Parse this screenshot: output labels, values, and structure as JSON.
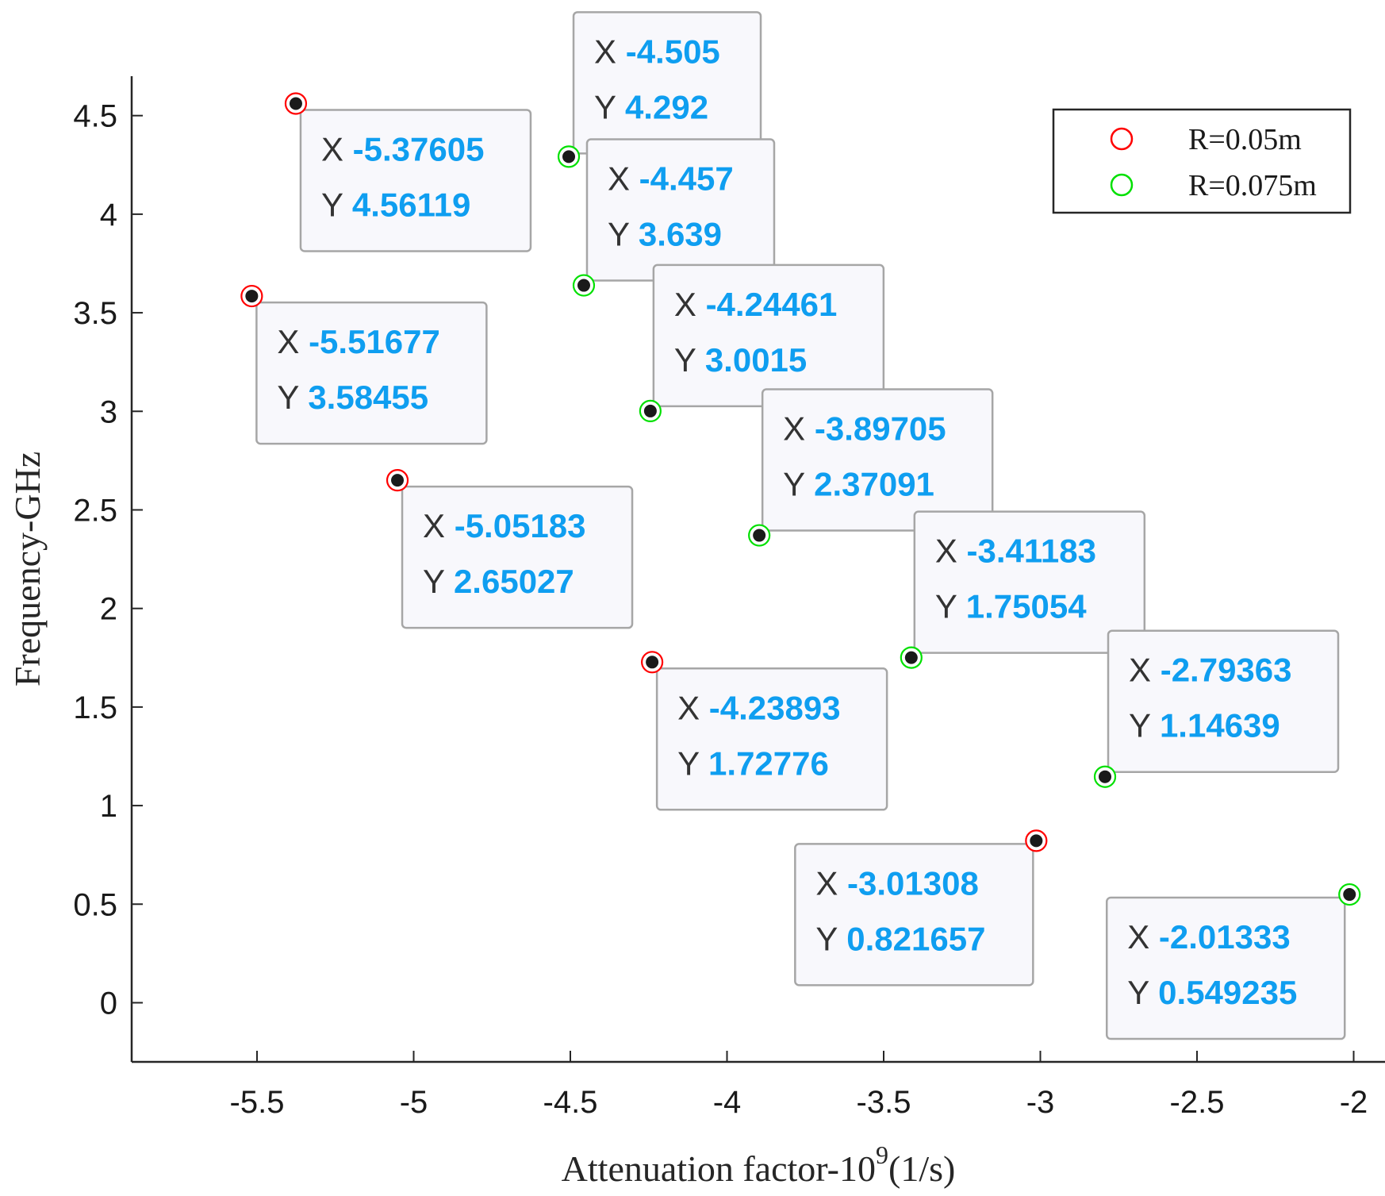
{
  "chart_data": {
    "type": "scatter",
    "title": "",
    "xlabel": "Attenuation factor-10",
    "xlabel_superscript": "9",
    "xlabel_suffix": "(1/s)",
    "ylabel": "Frequency-GHz",
    "xlim": [
      -5.9,
      -1.9
    ],
    "ylim": [
      -0.3,
      4.7
    ],
    "x_ticks": [
      -5.5,
      -5,
      -4.5,
      -4,
      -3.5,
      -3,
      -2.5,
      -2
    ],
    "x_tick_labels": [
      "-5.5",
      "-5",
      "-4.5",
      "-4",
      "-3.5",
      "-3",
      "-2.5",
      "-2"
    ],
    "y_ticks": [
      0,
      0.5,
      1,
      1.5,
      2,
      2.5,
      3,
      3.5,
      4,
      4.5
    ],
    "y_tick_labels": [
      "0",
      "0.5",
      "1",
      "1.5",
      "2",
      "2.5",
      "3",
      "3.5",
      "4",
      "4.5"
    ],
    "grid": false,
    "legend_position": "top-right",
    "series": [
      {
        "name": "R=0.05m",
        "color": "#ff0000",
        "points": [
          {
            "x": -5.37605,
            "y": 4.56119,
            "x_label": "-5.37605",
            "y_label": "4.56119"
          },
          {
            "x": -5.51677,
            "y": 3.58455,
            "x_label": "-5.51677",
            "y_label": "3.58455"
          },
          {
            "x": -5.05183,
            "y": 2.65027,
            "x_label": "-5.05183",
            "y_label": "2.65027"
          },
          {
            "x": -4.23893,
            "y": 1.72776,
            "x_label": "-4.23893",
            "y_label": "1.72776"
          },
          {
            "x": -3.01308,
            "y": 0.821657,
            "x_label": "-3.01308",
            "y_label": "0.821657"
          }
        ]
      },
      {
        "name": "R=0.075m",
        "color": "#00e000",
        "points": [
          {
            "x": -4.505,
            "y": 4.292,
            "x_label": "-4.505",
            "y_label": "4.292"
          },
          {
            "x": -4.457,
            "y": 3.639,
            "x_label": "-4.457",
            "y_label": "3.639"
          },
          {
            "x": -4.24461,
            "y": 3.0015,
            "x_label": "-4.24461",
            "y_label": "3.0015"
          },
          {
            "x": -3.89705,
            "y": 2.37091,
            "x_label": "-3.89705",
            "y_label": "2.37091"
          },
          {
            "x": -3.41183,
            "y": 1.75054,
            "x_label": "-3.41183",
            "y_label": "1.75054"
          },
          {
            "x": -2.79363,
            "y": 1.14639,
            "x_label": "-2.79363",
            "y_label": "1.14639"
          },
          {
            "x": -2.01333,
            "y": 0.549235,
            "x_label": "-2.01333",
            "y_label": "0.549235"
          }
        ]
      }
    ],
    "datatip_key_x": "X",
    "datatip_key_y": "Y"
  }
}
